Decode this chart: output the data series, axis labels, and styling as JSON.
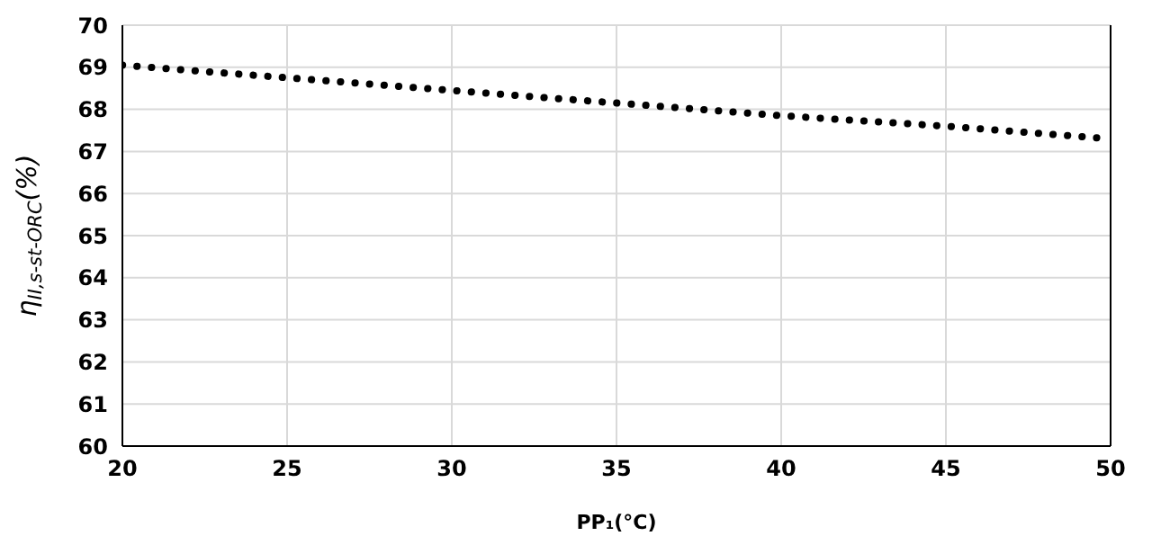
{
  "chart_data": {
    "type": "line",
    "xlabel": "PP₁(°C)",
    "ylabel": "η$_{II,s-st-ORC}$(%)",
    "x": [
      20,
      25,
      30,
      35,
      40,
      45,
      50
    ],
    "series": [
      {
        "color": "#000000",
        "values": [
          69.05,
          68.75,
          68.45,
          68.15,
          67.85,
          67.6,
          67.3
        ]
      }
    ],
    "xlim": [
      20,
      50
    ],
    "xticks": [
      20,
      25,
      30,
      35,
      40,
      45,
      50
    ],
    "ylim": [
      60,
      70
    ],
    "yticks": [
      60,
      61,
      62,
      63,
      64,
      65,
      66,
      67,
      68,
      69,
      70
    ],
    "grid": true,
    "legend": false,
    "marker": "none",
    "line_style": "dotted"
  }
}
